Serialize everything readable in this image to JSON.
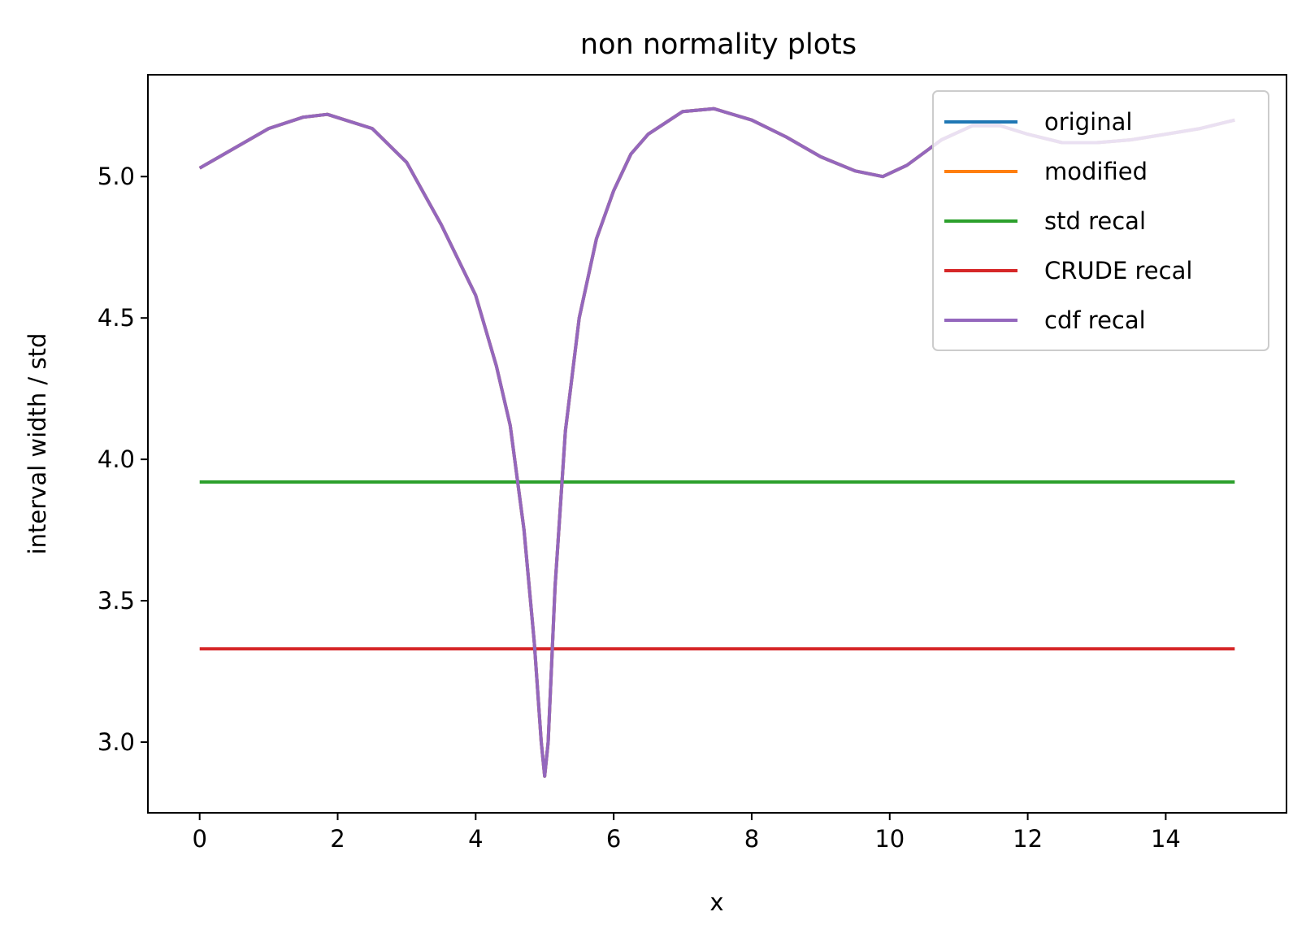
{
  "chart_data": {
    "type": "line",
    "title": "non normality plots",
    "xlabel": "x",
    "ylabel": "interval width / std",
    "xlim": [
      -0.75,
      15.75
    ],
    "ylim": [
      2.75,
      5.36
    ],
    "xticks": [
      0,
      2,
      4,
      6,
      8,
      10,
      12,
      14
    ],
    "yticks": [
      3.0,
      3.5,
      4.0,
      4.5,
      5.0
    ],
    "ytick_labels": [
      "3.0",
      "3.5",
      "4.0",
      "4.5",
      "5.0"
    ],
    "grid": false,
    "legend_position": "top-right",
    "series": [
      {
        "name": "original",
        "color": "#1f77b4",
        "x": [
          0,
          0.5,
          1,
          1.5,
          1.85,
          2.5,
          3,
          3.5,
          4,
          4.3,
          4.5,
          4.7,
          4.85,
          4.95,
          5.0,
          5.05,
          5.15,
          5.3,
          5.5,
          5.75,
          6,
          6.25,
          6.5,
          7,
          7.45,
          8,
          8.5,
          9,
          9.5,
          9.9,
          10.25,
          10.75,
          11.2,
          11.6,
          12,
          12.5,
          13,
          13.5,
          14,
          14.5,
          15
        ],
        "y": [
          5.03,
          5.1,
          5.17,
          5.21,
          5.22,
          5.17,
          5.05,
          4.83,
          4.58,
          4.33,
          4.12,
          3.75,
          3.35,
          3.0,
          2.88,
          3.0,
          3.55,
          4.1,
          4.5,
          4.78,
          4.95,
          5.08,
          5.15,
          5.23,
          5.24,
          5.2,
          5.14,
          5.07,
          5.02,
          5.0,
          5.04,
          5.13,
          5.18,
          5.18,
          5.15,
          5.12,
          5.12,
          5.13,
          5.15,
          5.17,
          5.2
        ]
      },
      {
        "name": "modified",
        "color": "#ff7f0e",
        "x": [
          0,
          0.5,
          1,
          1.5,
          1.85,
          2.5,
          3,
          3.5,
          4,
          4.3,
          4.5,
          4.7,
          4.85,
          4.95,
          5.0,
          5.05,
          5.15,
          5.3,
          5.5,
          5.75,
          6,
          6.25,
          6.5,
          7,
          7.45,
          8,
          8.5,
          9,
          9.5,
          9.9,
          10.25,
          10.75,
          11.2,
          11.6,
          12,
          12.5,
          13,
          13.5,
          14,
          14.5,
          15
        ],
        "y": [
          5.03,
          5.1,
          5.17,
          5.21,
          5.22,
          5.17,
          5.05,
          4.83,
          4.58,
          4.33,
          4.12,
          3.75,
          3.35,
          3.0,
          2.88,
          3.0,
          3.55,
          4.1,
          4.5,
          4.78,
          4.95,
          5.08,
          5.15,
          5.23,
          5.24,
          5.2,
          5.14,
          5.07,
          5.02,
          5.0,
          5.04,
          5.13,
          5.18,
          5.18,
          5.15,
          5.12,
          5.12,
          5.13,
          5.15,
          5.17,
          5.2
        ]
      },
      {
        "name": "std recal",
        "color": "#2ca02c",
        "x": [
          0,
          15
        ],
        "y": [
          3.92,
          3.92
        ]
      },
      {
        "name": "CRUDE recal",
        "color": "#d62728",
        "x": [
          0,
          15
        ],
        "y": [
          3.33,
          3.33
        ]
      },
      {
        "name": "cdf recal",
        "color": "#9467bd",
        "x": [
          0,
          0.5,
          1,
          1.5,
          1.85,
          2.5,
          3,
          3.5,
          4,
          4.3,
          4.5,
          4.7,
          4.85,
          4.95,
          5.0,
          5.05,
          5.15,
          5.3,
          5.5,
          5.75,
          6,
          6.25,
          6.5,
          7,
          7.45,
          8,
          8.5,
          9,
          9.5,
          9.9,
          10.25,
          10.75,
          11.2,
          11.6,
          12,
          12.5,
          13,
          13.5,
          14,
          14.5,
          15
        ],
        "y": [
          5.03,
          5.1,
          5.17,
          5.21,
          5.22,
          5.17,
          5.05,
          4.83,
          4.58,
          4.33,
          4.12,
          3.75,
          3.35,
          3.0,
          2.88,
          3.0,
          3.55,
          4.1,
          4.5,
          4.78,
          4.95,
          5.08,
          5.15,
          5.23,
          5.24,
          5.2,
          5.14,
          5.07,
          5.02,
          5.0,
          5.04,
          5.13,
          5.18,
          5.18,
          5.15,
          5.12,
          5.12,
          5.13,
          5.15,
          5.17,
          5.2
        ]
      }
    ]
  }
}
